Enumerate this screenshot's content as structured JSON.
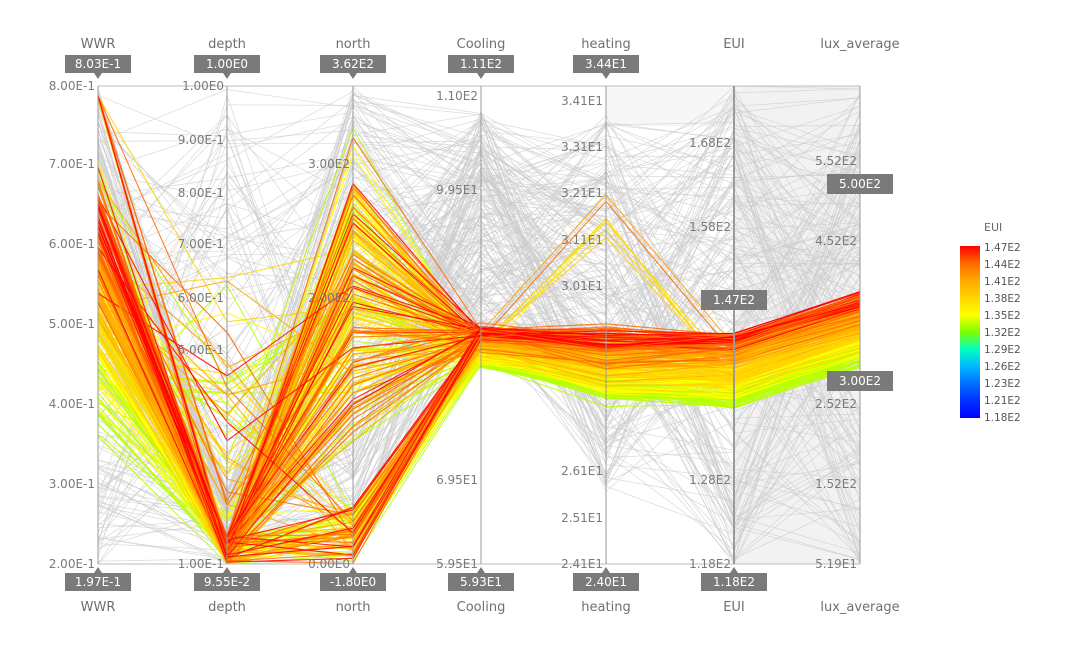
{
  "chart_data": {
    "type": "parallel_coordinates",
    "axes": [
      {
        "name": "WWR",
        "ticks": [
          "2.00E-1",
          "3.00E-1",
          "4.00E-1",
          "5.00E-1",
          "6.00E-1",
          "7.00E-1",
          "8.00E-1"
        ],
        "top_label": "8.03E-1",
        "bottom_label": "1.97E-1"
      },
      {
        "name": "depth",
        "ticks": [
          "1.00E-1",
          "5.00E-1",
          "6.00E-1",
          "7.00E-1",
          "8.00E-1",
          "9.00E-1",
          "1.00E0"
        ],
        "top_label": "1.00E0",
        "bottom_label": "9.55E-2"
      },
      {
        "name": "north",
        "ticks": [
          "0.00E0",
          "2.00E2",
          "3.00E2"
        ],
        "top_label": "3.62E2",
        "bottom_label": "-1.80E0"
      },
      {
        "name": "Cooling",
        "ticks": [
          "5.95E1",
          "6.95E1",
          "9.95E1",
          "1.10E2"
        ],
        "top_label": "1.11E2",
        "bottom_label": "5.93E1"
      },
      {
        "name": "heating",
        "ticks": [
          "2.41E1",
          "2.51E1",
          "2.61E1",
          "3.01E1",
          "3.11E1",
          "3.21E1",
          "3.31E1",
          "3.41E1"
        ],
        "top_label": "3.44E1",
        "bottom_label": "2.40E1"
      },
      {
        "name": "EUI",
        "ticks": [
          "1.18E2",
          "1.28E2",
          "1.58E2",
          "1.68E2"
        ],
        "top_label": "",
        "bottom_label": "1.18E2",
        "brush_label": "1.47E2"
      },
      {
        "name": "lux_average",
        "ticks": [
          "5.19E1",
          "1.52E2",
          "2.52E2",
          "4.52E2",
          "5.52E2"
        ],
        "top_label": "",
        "bottom_label": "",
        "brush_top_label": "5.00E2",
        "brush_bottom_label": "3.00E2"
      }
    ],
    "color_scale": {
      "title": "EUI",
      "ticks": [
        "1.47E2",
        "1.44E2",
        "1.41E2",
        "1.38E2",
        "1.35E2",
        "1.32E2",
        "1.29E2",
        "1.26E2",
        "1.23E2",
        "1.21E2",
        "1.18E2"
      ],
      "colors": [
        "#ff0000",
        "#ff6a00",
        "#ffa800",
        "#ffd400",
        "#ffff00",
        "#7dff00",
        "#00ffc0",
        "#00b8ff",
        "#0070ff",
        "#0030ff",
        "#0000ff"
      ]
    },
    "highlight_colors": [
      "#ff0000",
      "#ff6a00",
      "#ffa800",
      "#ffd400",
      "#ffff00",
      "#b8ff00"
    ],
    "context_color": "#cccccc"
  }
}
